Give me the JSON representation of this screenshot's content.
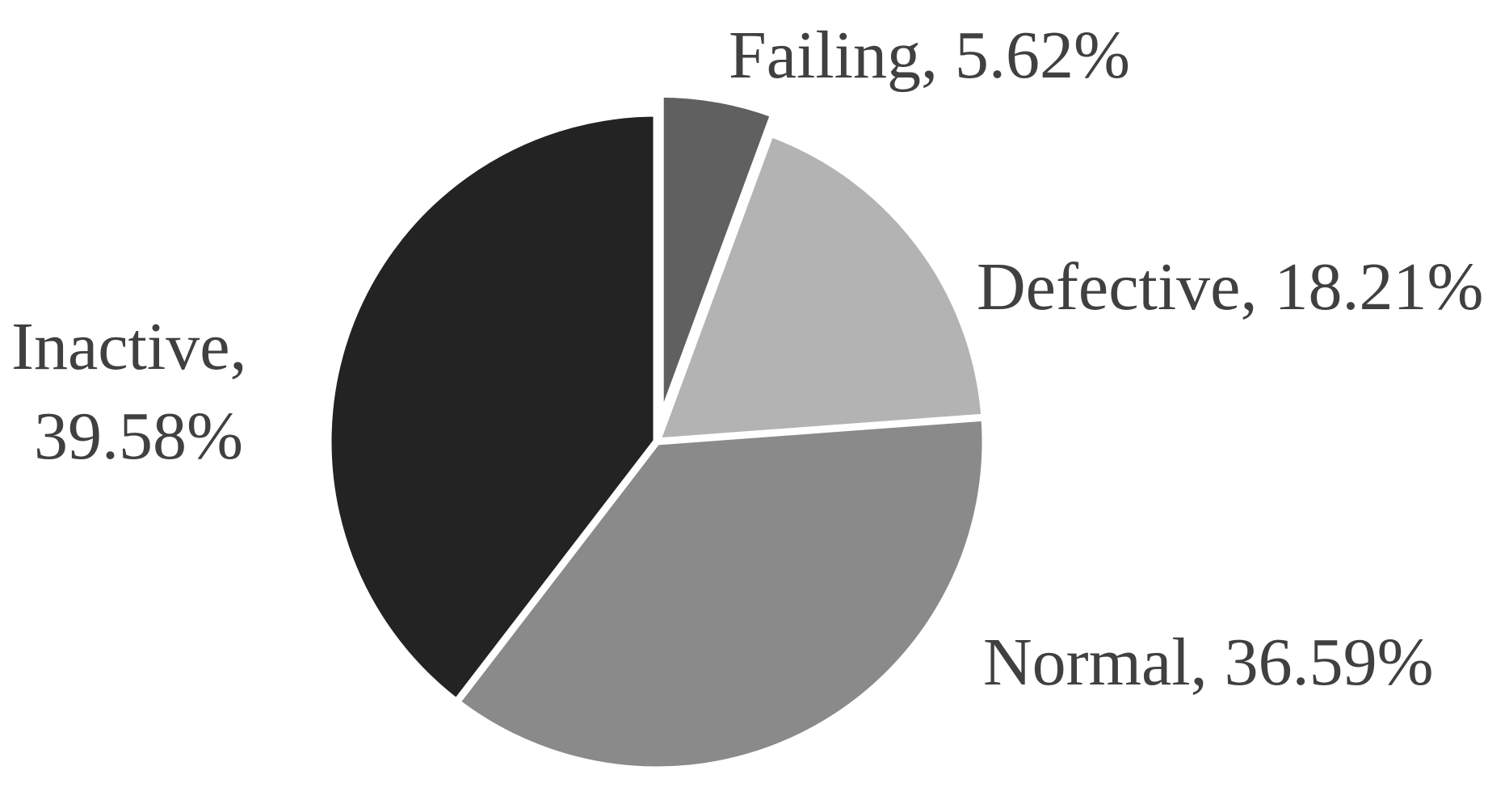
{
  "chart_data": {
    "type": "pie",
    "values": [
      5.62,
      18.21,
      36.59,
      39.58
    ],
    "value_labels": [
      "Failing, 5.62%",
      "Defective, 18.21%",
      "Normal, 36.59%",
      [
        "Inactive,",
        "39.58%"
      ]
    ],
    "colors": [
      "#606060",
      "#b3b3b3",
      "#8a8a8a",
      "#232323"
    ],
    "exploded": [
      true,
      false,
      false,
      false
    ]
  }
}
